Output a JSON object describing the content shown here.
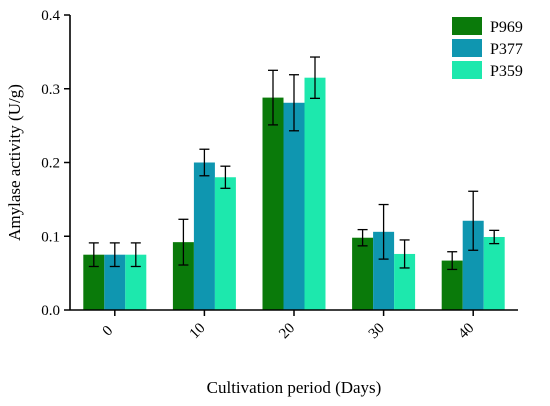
{
  "chart_data": {
    "type": "bar",
    "title": "",
    "xlabel": "Cultivation period (Days)",
    "ylabel": "Amylase activity (U/g)",
    "ylim": [
      0,
      0.4
    ],
    "yticks": [
      "0.0",
      "0.1",
      "0.2",
      "0.3",
      "0.4"
    ],
    "categories": [
      "0",
      "10",
      "20",
      "30",
      "40"
    ],
    "series": [
      {
        "name": "P969",
        "color": "#0a7a0a",
        "values": [
          0.075,
          0.092,
          0.288,
          0.098,
          0.067
        ],
        "errors": [
          0.016,
          0.031,
          0.037,
          0.011,
          0.012
        ]
      },
      {
        "name": "P377",
        "color": "#0f96b0",
        "values": [
          0.075,
          0.2,
          0.281,
          0.106,
          0.121
        ],
        "errors": [
          0.016,
          0.018,
          0.038,
          0.037,
          0.04
        ]
      },
      {
        "name": "P359",
        "color": "#1de8ad",
        "values": [
          0.075,
          0.18,
          0.315,
          0.076,
          0.099
        ],
        "errors": [
          0.016,
          0.015,
          0.028,
          0.019,
          0.009
        ]
      }
    ],
    "legend": "top-right",
    "grid": false
  }
}
